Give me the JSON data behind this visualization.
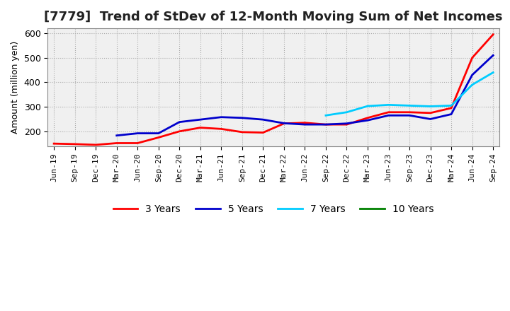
{
  "title": "[7779]  Trend of StDev of 12-Month Moving Sum of Net Incomes",
  "ylabel": "Amount (million yen)",
  "ylim": [
    140,
    620
  ],
  "yticks": [
    200,
    300,
    400,
    500,
    600
  ],
  "background_color": "#ffffff",
  "plot_bg_color": "#f0f0f0",
  "grid_color": "#aaaaaa",
  "title_fontsize": 13,
  "axis_fontsize": 9,
  "legend_labels": [
    "3 Years",
    "5 Years",
    "7 Years",
    "10 Years"
  ],
  "legend_colors": [
    "#ff0000",
    "#0000cc",
    "#00ccff",
    "#008000"
  ],
  "x_labels": [
    "Jun-19",
    "Sep-19",
    "Dec-19",
    "Mar-20",
    "Jun-20",
    "Sep-20",
    "Dec-20",
    "Mar-21",
    "Jun-21",
    "Sep-21",
    "Dec-21",
    "Mar-22",
    "Jun-22",
    "Sep-22",
    "Dec-22",
    "Mar-23",
    "Jun-23",
    "Sep-23",
    "Dec-23",
    "Mar-24",
    "Jun-24",
    "Sep-24"
  ],
  "series_3y": [
    150,
    148,
    145,
    152,
    152,
    175,
    200,
    215,
    210,
    197,
    195,
    232,
    235,
    228,
    228,
    255,
    278,
    278,
    275,
    295,
    500,
    595
  ],
  "series_5y": [
    null,
    null,
    null,
    183,
    192,
    192,
    238,
    248,
    258,
    255,
    248,
    233,
    228,
    228,
    232,
    245,
    265,
    265,
    250,
    270,
    430,
    510
  ],
  "series_7y": [
    null,
    null,
    null,
    null,
    null,
    null,
    null,
    null,
    null,
    null,
    null,
    null,
    null,
    265,
    278,
    303,
    308,
    305,
    302,
    305,
    390,
    440
  ],
  "series_10y": [
    null,
    null,
    null,
    null,
    null,
    null,
    null,
    null,
    null,
    null,
    null,
    null,
    null,
    null,
    null,
    null,
    null,
    null,
    null,
    null,
    null,
    null
  ]
}
